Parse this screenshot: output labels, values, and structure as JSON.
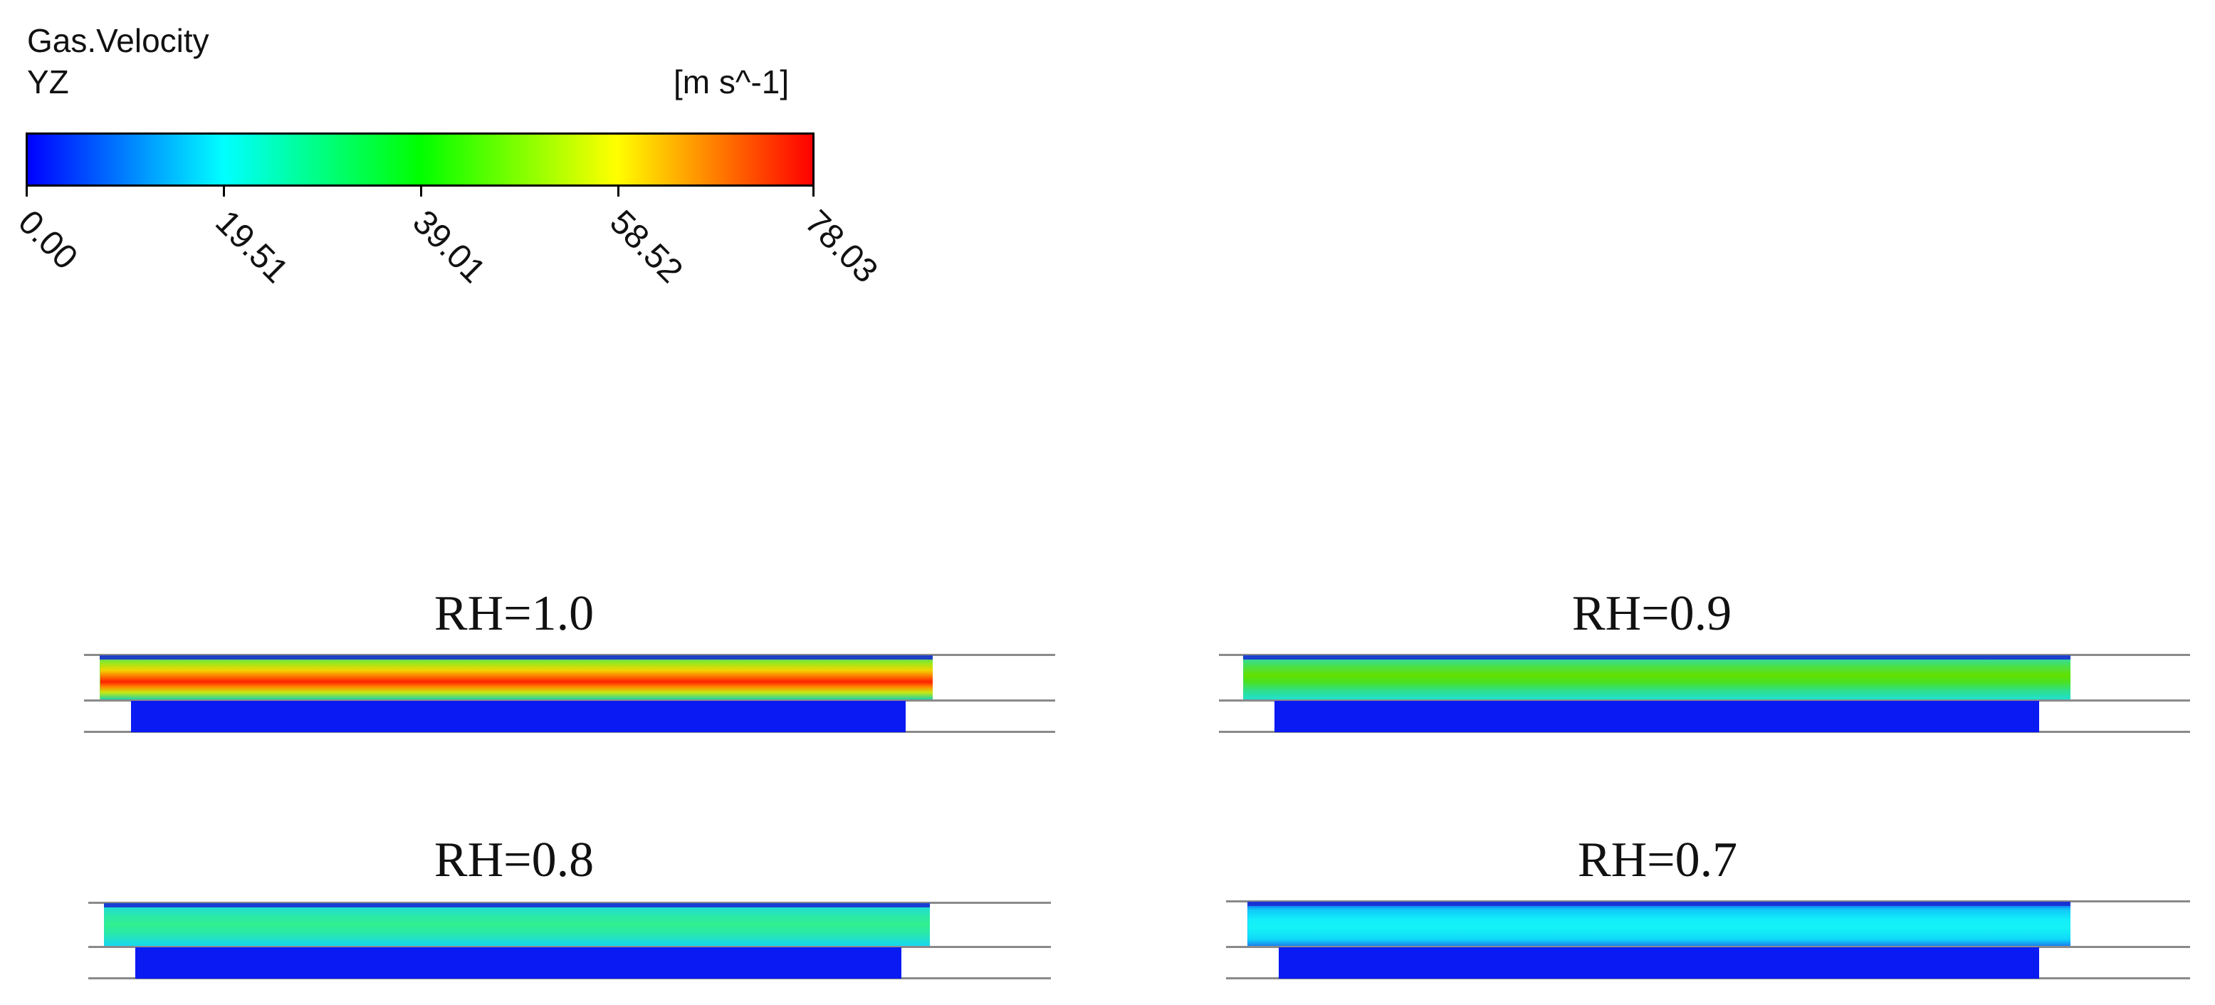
{
  "legend": {
    "title": "Gas.Velocity",
    "plane": "YZ",
    "unit": "[m s^-1]",
    "colormap": [
      "#0000ff",
      "#00ffff",
      "#00ff00",
      "#ffff00",
      "#ff0000"
    ],
    "ticks": [
      "0.00",
      "19.51",
      "39.01",
      "58.52",
      "78.03"
    ],
    "range": [
      0.0,
      78.03
    ]
  },
  "cases": [
    {
      "title": "RH=1.0",
      "channel_gradient": "linear-gradient(to bottom, #2fd38a 0%, #9be81c 18%, #f2d400 34%, #ff5a00 52%, #ff2200 60%, #ff8a00 72%, #c8ea10 84%, #20d0a8 100%)",
      "channel_inlet": "linear-gradient(to right, #2fd3b0 0%, #b8e814 6%, rgba(0,0,0,0) 14%)",
      "plate_color": "#0a1af2"
    },
    {
      "title": "RH=0.9",
      "channel_gradient": "linear-gradient(to bottom, #25d8c8 0%, #4de04a 25%, #62e000 45%, #4ce020 60%, #2ee08a 80%, #20e0d0 100%)",
      "channel_inlet": "linear-gradient(to right, #20e0e0 0%, #40e060 5%, rgba(0,0,0,0) 12%)",
      "plate_color": "#0a1af2"
    },
    {
      "title": "RH=0.8",
      "channel_gradient": "linear-gradient(to bottom, #18d8e8 0%, #2ae8a8 30%, #30f090 50%, #2ae8a8 70%, #16d8f0 100%)",
      "channel_inlet": "linear-gradient(to right, #10e0f4 0%, rgba(0,0,0,0) 8%)",
      "plate_color": "#0a1af2"
    },
    {
      "title": "RH=0.7",
      "channel_gradient": "linear-gradient(to bottom, #1040f0 0%, #10c8f8 18%, #12eefa 40%, #14f2f6 60%, #10d8f8 85%, #1a80f0 100%)",
      "channel_inlet": "linear-gradient(to right, #1060f0 0%, rgba(0,0,0,0) 5%)",
      "plate_color": "#0a1af2"
    }
  ]
}
